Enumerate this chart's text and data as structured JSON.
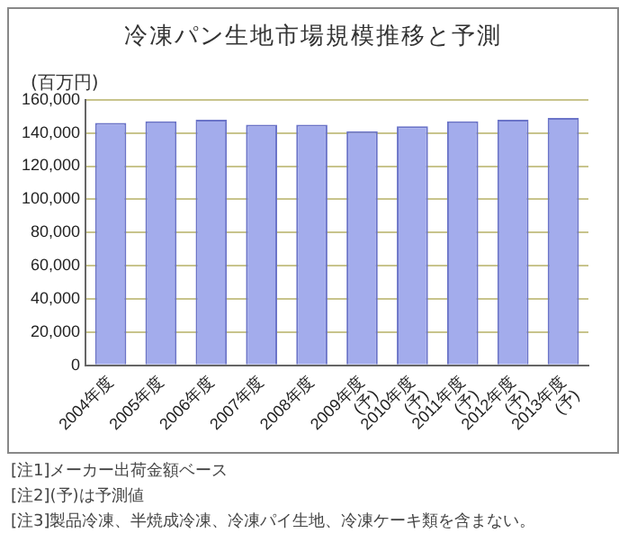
{
  "chart_data": {
    "type": "bar",
    "title": "冷凍パン生地市場規模推移と予測",
    "ylabel": "(百万円)",
    "categories": [
      "2004年度",
      "2005年度",
      "2006年度",
      "2007年度",
      "2008年度",
      "2009年度\n(予)",
      "2010年度\n(予)",
      "2011年度\n(予)",
      "2012年度\n(予)",
      "2013年度\n(予)"
    ],
    "values": [
      146000,
      147000,
      148000,
      145000,
      145000,
      141000,
      144000,
      147000,
      148000,
      149000
    ],
    "color": "#a3acec",
    "ylim": [
      0,
      160000
    ],
    "yticks": [
      {
        "value": 0,
        "label": "0"
      },
      {
        "value": 20000,
        "label": "20,000"
      },
      {
        "value": 40000,
        "label": "40,000"
      },
      {
        "value": 60000,
        "label": "60,000"
      },
      {
        "value": 80000,
        "label": "80,000"
      },
      {
        "value": 100000,
        "label": "100,000"
      },
      {
        "value": 120000,
        "label": "120,000"
      },
      {
        "value": 140000,
        "label": "140,000"
      },
      {
        "value": 160000,
        "label": "160,000"
      }
    ],
    "grid": "y",
    "legend": false,
    "annotations": [
      "[注1]メーカー出荷金額ベース",
      "[注2](予)は予測値",
      "[注3]製品冷凍、半焼成冷凍、冷凍パイ生地、冷凍ケーキ類を含まない。"
    ]
  }
}
